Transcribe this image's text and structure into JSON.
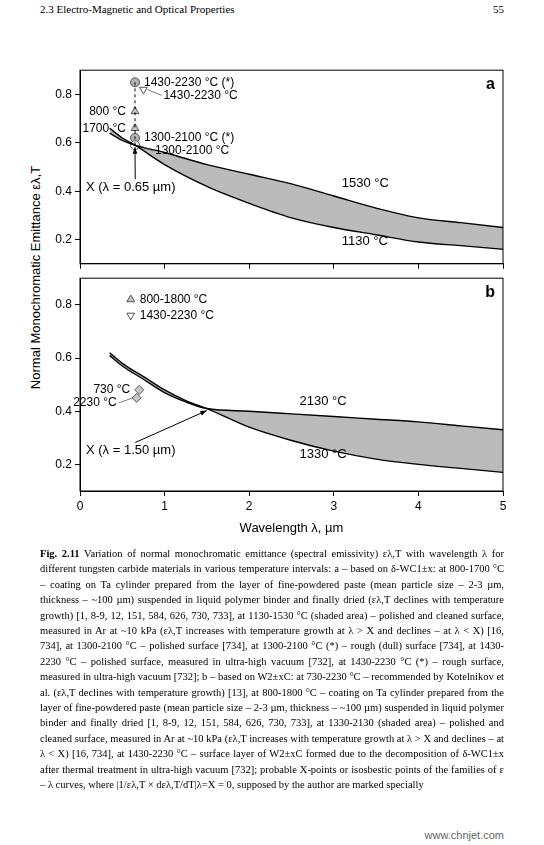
{
  "header": {
    "section": "2.3 Electro-Magnetic and Optical Properties",
    "page": "55"
  },
  "y_label": "Normal Monochromatic Emittance ελ,T",
  "chart_data": [
    {
      "type": "line",
      "title": "a",
      "x": [
        0.35,
        0.5,
        0.65,
        1,
        1.5,
        2,
        2.5,
        3,
        3.5,
        4,
        4.5,
        5
      ],
      "series": [
        {
          "name": "1530 °C",
          "color": "#000000",
          "line_style": "solid",
          "values": [
            0.64,
            0.61,
            0.59,
            0.56,
            0.51,
            0.47,
            0.43,
            0.38,
            0.33,
            0.29,
            0.27,
            0.25
          ]
        },
        {
          "name": "1130 °C",
          "color": "#000000",
          "line_style": "solid",
          "values": [
            0.66,
            0.62,
            0.59,
            0.51,
            0.42,
            0.35,
            0.29,
            0.25,
            0.22,
            0.19,
            0.175,
            0.16
          ]
        }
      ],
      "points": [
        {
          "label": "1430-2230 °C (*)",
          "x": 0.65,
          "y": 0.85,
          "marker": "circle",
          "color": "#b3b3b3"
        },
        {
          "label": "1430-2230 °C",
          "x": 0.75,
          "y": 0.82,
          "marker": "triangle-down",
          "color": "#ffffff"
        },
        {
          "label": "800 °C",
          "x": 0.65,
          "y": 0.73,
          "marker": "triangle-up",
          "color": "#c8c8c8"
        },
        {
          "label": "1700 °C",
          "x": 0.65,
          "y": 0.66,
          "marker": "triangle-up",
          "color": "#c8c8c8"
        },
        {
          "label": "1300-2100 °C (*)",
          "x": 0.65,
          "y": 0.62,
          "marker": "circle",
          "color": "#b3b3b3"
        },
        {
          "label": "1300-2100 °C",
          "x": 0.65,
          "y": 0.59,
          "marker": "circle",
          "color": "#ffffff"
        }
      ],
      "annotations": [
        {
          "text": "X (λ = 0.65 µm)",
          "x": 0.65,
          "y": 0.59
        }
      ],
      "xlim": [
        0,
        5
      ],
      "xticks": [
        0,
        1,
        2,
        3,
        4,
        5
      ],
      "ylim": [
        0.1,
        0.9
      ],
      "yticks": [
        0.2,
        0.4,
        0.6,
        0.8
      ],
      "grid": false,
      "tick_labels": "y"
    },
    {
      "type": "line",
      "title": "b",
      "x_label": "Wavelength λ, µm",
      "x": [
        0.35,
        0.5,
        0.75,
        1,
        1.25,
        1.5,
        2,
        2.5,
        3,
        3.5,
        4,
        4.5,
        5
      ],
      "series": [
        {
          "name": "2130 °C",
          "color": "#000000",
          "line_style": "solid",
          "values": [
            0.61,
            0.57,
            0.52,
            0.47,
            0.435,
            0.41,
            0.4,
            0.39,
            0.38,
            0.37,
            0.36,
            0.345,
            0.33
          ]
        },
        {
          "name": "1330 °C",
          "color": "#000000",
          "line_style": "solid",
          "values": [
            0.62,
            0.58,
            0.53,
            0.48,
            0.44,
            0.41,
            0.34,
            0.29,
            0.25,
            0.22,
            0.2,
            0.185,
            0.17
          ]
        }
      ],
      "points": [
        {
          "label": "800-1800 °C",
          "x": 0.6,
          "y": 0.82,
          "marker": "triangle-up",
          "color": "#c8c8c8"
        },
        {
          "label": "1430-2230 °C",
          "x": 0.6,
          "y": 0.76,
          "marker": "triangle-down",
          "color": "#ffffff"
        },
        {
          "label": "730 °C",
          "x": 0.7,
          "y": 0.48,
          "marker": "diamond",
          "color": "#c8c8c8"
        },
        {
          "label": "2230 °C",
          "x": 0.67,
          "y": 0.45,
          "marker": "diamond",
          "color": "#c8c8c8"
        }
      ],
      "annotations": [
        {
          "text": "X (λ = 1.50 µm)",
          "x": 1.5,
          "y": 0.41
        }
      ],
      "xlim": [
        0,
        5
      ],
      "xticks": [
        0,
        1,
        2,
        3,
        4,
        5
      ],
      "ylim": [
        0.1,
        0.9
      ],
      "yticks": [
        0.2,
        0.4,
        0.6,
        0.8
      ],
      "grid": false
    }
  ],
  "caption_label": "Fig. 2.11",
  "caption": "Variation of normal monochromatic emittance (spectral emissivity) ελ,T with wavelength λ for different tungsten carbide materials in various temperature intervals: a – based on δ-WC1±x: at 800-1700 °C – coating on Ta cylinder prepared from the layer of fine-powdered paste (mean particle size – 2-3 µm, thickness – ~100 µm) suspended in liquid polymer binder and finally dried (ελ,T declines with temperature growth) [1, 8-9, 12, 151, 584, 626, 730, 733], at 1130-1530 °C (shaded area) – polished and cleaned surface, measured in Ar at ~10 kPa (ελ,T increases with temperature growth at λ > X and declines – at λ < X) [16, 734], at 1300-2100 °C – polished surface [734], at 1300-2100 °C (*) – rough (dull) surface [734], at 1430-2230 °C – polished surface, measured in ultra-high vacuum [732], at 1430-2230 °C (*) – rough surface, measured in ultra-high vacuum [732]; b – based on W2±xC: at 730-2230 °C – recommended by Kotelnikov et al. (ελ,T declines with temperature growth) [13], at 800-1800 °C – coating on Ta cylinder prepared from the layer of fine-powdered paste (mean particle size – 2-3 µm, thickness – ~100 µm) suspended in liquid polymer binder and finally dried [1, 8-9, 12, 151, 584, 626, 730, 733], at 1330-2130 (shaded area) – polished and cleaned surface, measured in Ar at ~10 kPa (ελ,T increases with temperature growth at λ > X and declines – at λ < X) [16, 734], at 1430-2230 °C – surface layer of W2±xC formed due to the decomposition of δ-WC1±x after thermal treatment in ultra-high vacuum [732]; probable X-points or isosbestic points of the families of ε – λ curves, where |1/ελ,T × dελ,T/dT|λ=X = 0, supposed by the author are marked specially",
  "watermark": "www.chnjet.com"
}
